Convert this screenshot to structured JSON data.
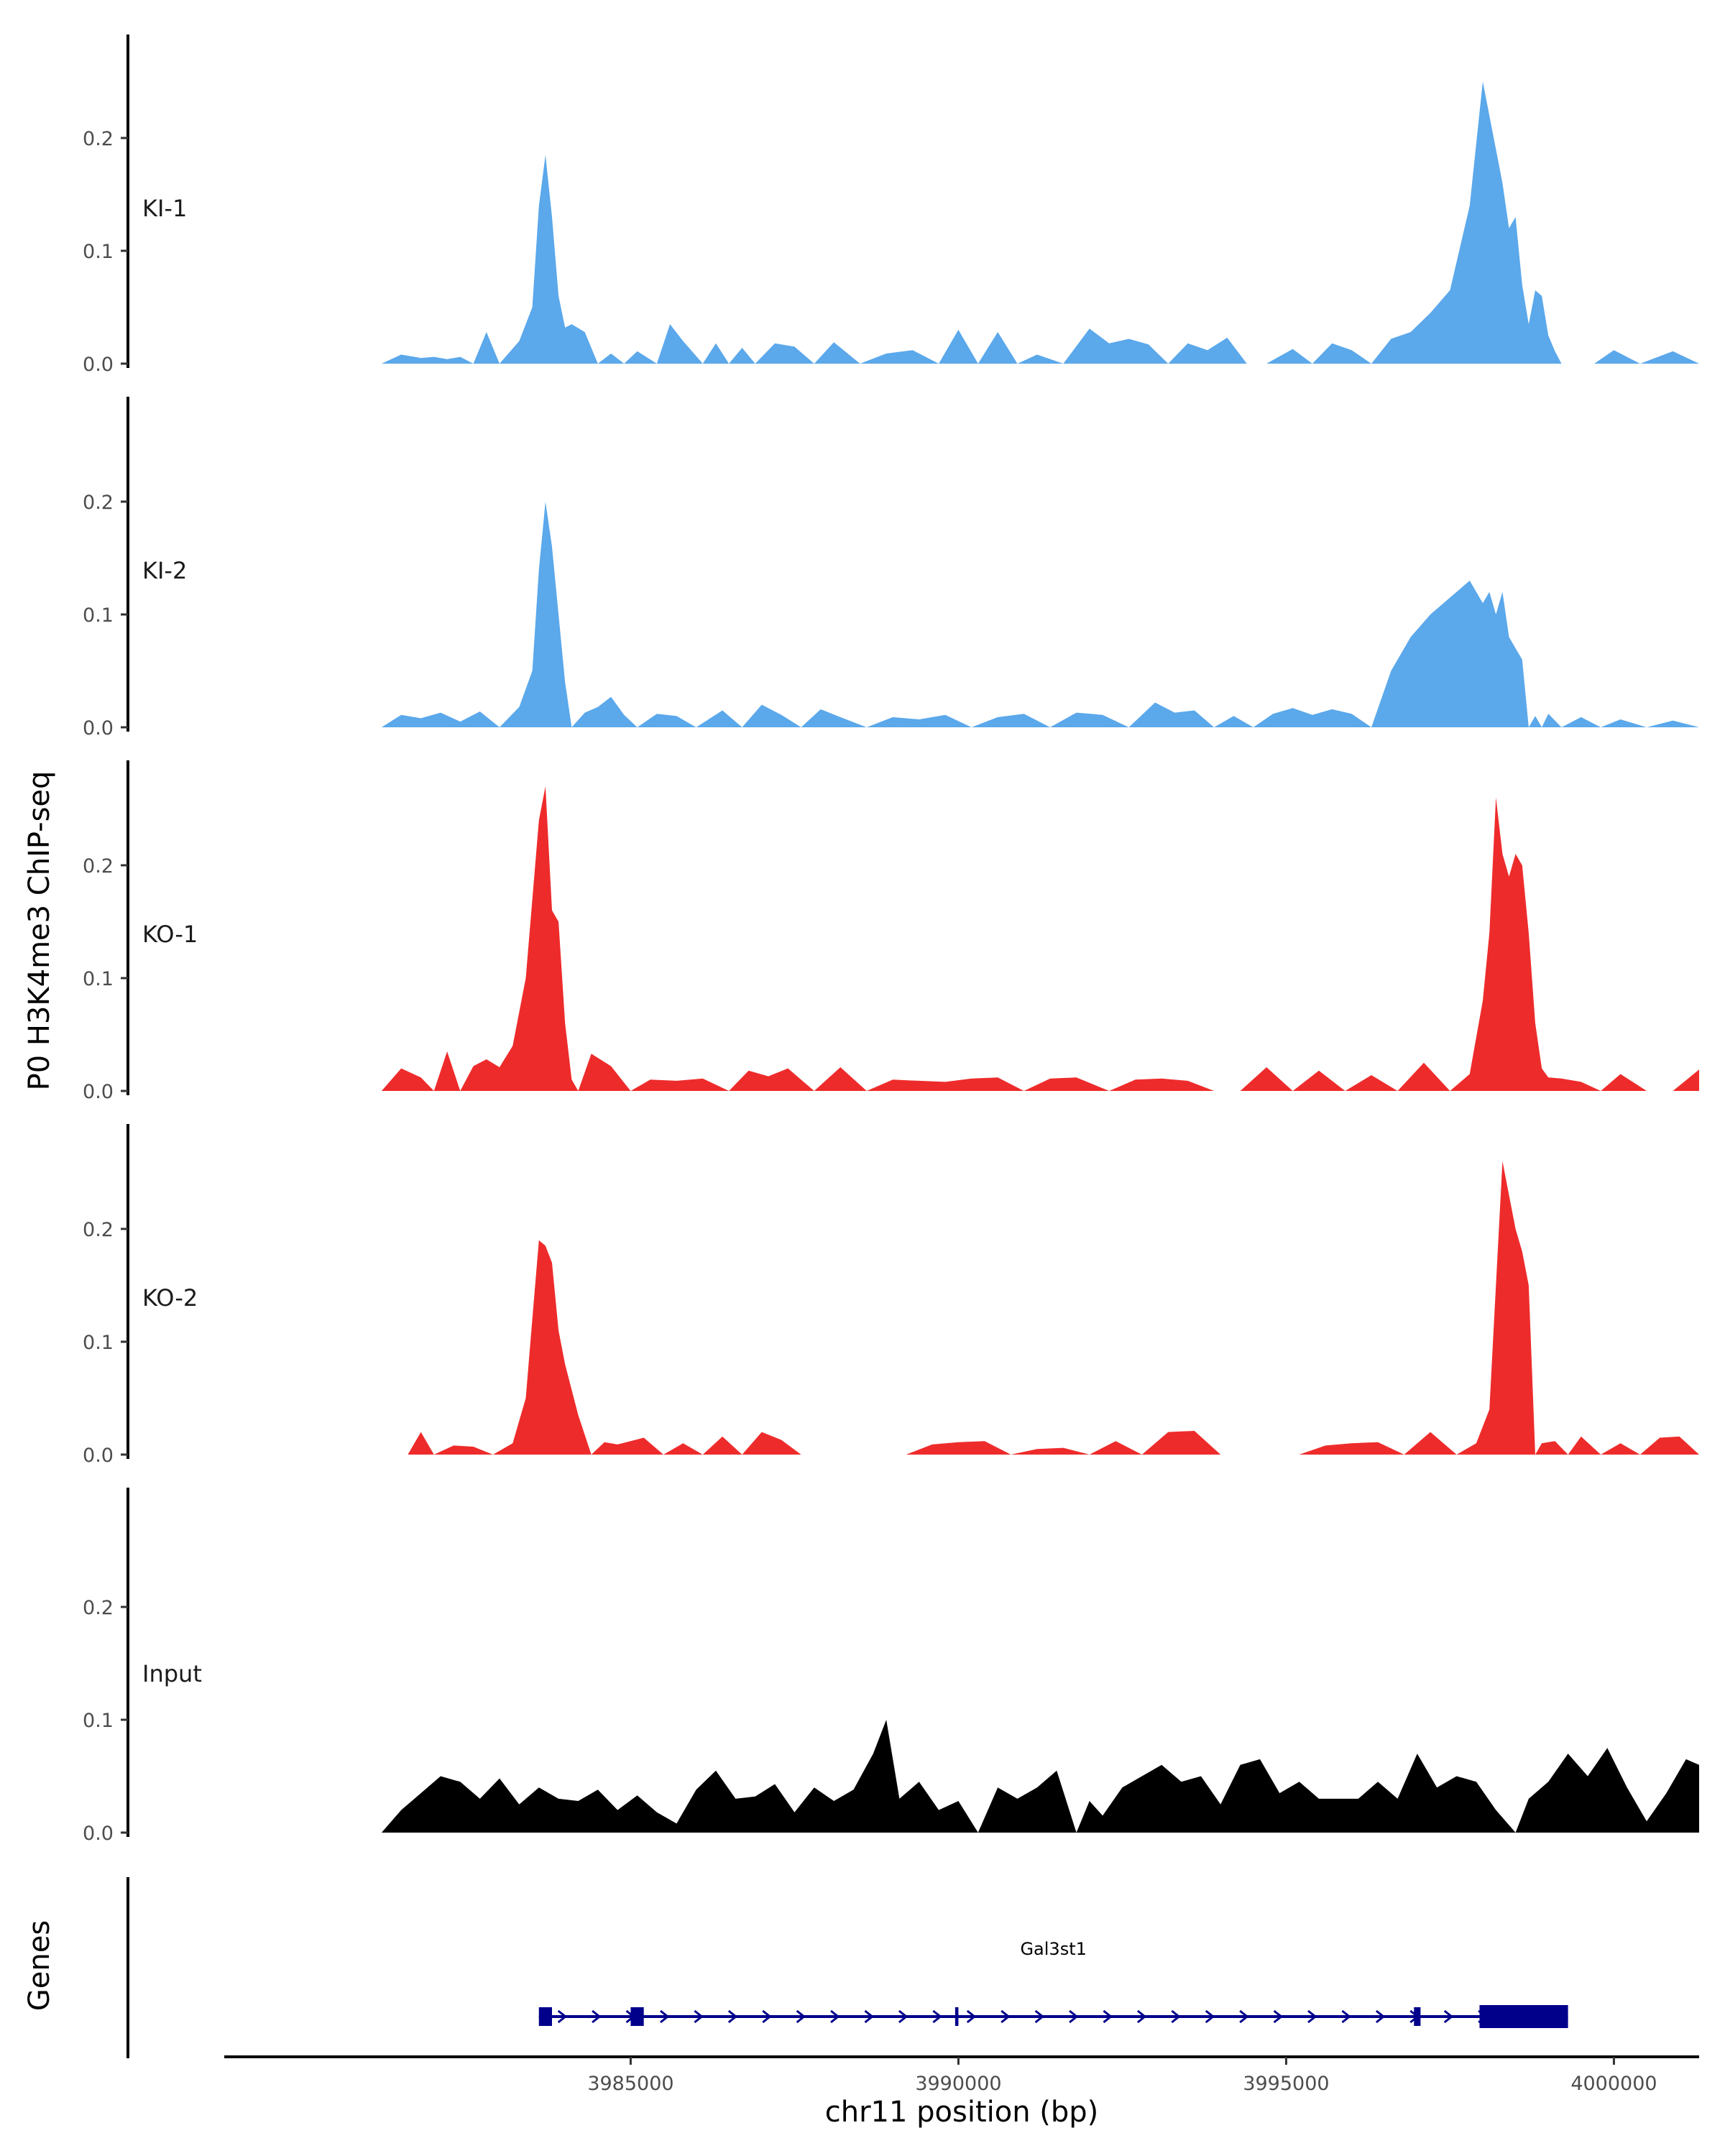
{
  "chart_data": {
    "type": "area",
    "ylabel": "P0 H3K4me3 ChIP-seq",
    "xlabel": "chr11 position (bp)",
    "xlim": [
      3978800,
      4001300
    ],
    "x_ticks": [
      3985000,
      3990000,
      3995000,
      4000000
    ],
    "x_tick_labels": [
      "3985000",
      "3990000",
      "3995000",
      "4000000"
    ],
    "ylim": [
      0,
      0.3
    ],
    "y_ticks": [
      0.0,
      0.1,
      0.2
    ],
    "y_tick_labels": [
      "0.0",
      "0.1",
      "0.2"
    ],
    "genes_label": "Genes",
    "colors": {
      "KI": "#5ba8eb",
      "KO": "#ee2b2b",
      "Input": "#000000",
      "gene": "#00008b"
    },
    "series": [
      {
        "name": "KI-1",
        "color": "#5ba8eb",
        "x": [
          3981200,
          3981500,
          3981800,
          3982000,
          3982200,
          3982400,
          3982600,
          3982800,
          3983000,
          3983300,
          3983500,
          3983600,
          3983700,
          3983800,
          3983900,
          3984000,
          3984100,
          3984300,
          3984500,
          3984700,
          3984900,
          3985100,
          3985400,
          3985600,
          3985800,
          3986100,
          3986300,
          3986500,
          3986700,
          3986900,
          3987200,
          3987500,
          3987800,
          3988100,
          3988500,
          3988900,
          3989300,
          3989700,
          3990000,
          3990300,
          3990600,
          3990900,
          3991200,
          3991600,
          3992000,
          3992300,
          3992600,
          3992900,
          3993200,
          3993500,
          3993800,
          3994100,
          3994400,
          3994700,
          3995100,
          3995400,
          3995700,
          3996000,
          3996300,
          3996600,
          3996900,
          3997200,
          3997500,
          3997800,
          3998000,
          3998200,
          3998300,
          3998400,
          3998500,
          3998600,
          3998700,
          3998800,
          3998900,
          3999000,
          3999100,
          3999200,
          3999400,
          3999700,
          4000000,
          4000400,
          4000900,
          4001300
        ],
        "y": [
          0.0,
          0.008,
          0.005,
          0.006,
          0.004,
          0.006,
          0.0,
          0.028,
          0.0,
          0.02,
          0.05,
          0.14,
          0.185,
          0.13,
          0.06,
          0.032,
          0.035,
          0.028,
          0.0,
          0.009,
          0.0,
          0.011,
          0.0,
          0.035,
          0.02,
          0.0,
          0.018,
          0.0,
          0.014,
          0.0,
          0.018,
          0.015,
          0.0,
          0.019,
          0.0,
          0.009,
          0.012,
          0.0,
          0.03,
          0.0,
          0.028,
          0.0,
          0.008,
          0.0,
          0.031,
          0.018,
          0.022,
          0.017,
          0.0,
          0.018,
          0.012,
          0.023,
          0.0,
          0.0,
          0.013,
          0.0,
          0.018,
          0.012,
          0.0,
          0.022,
          0.028,
          0.045,
          0.065,
          0.14,
          0.25,
          0.19,
          0.16,
          0.12,
          0.13,
          0.07,
          0.035,
          0.065,
          0.06,
          0.025,
          0.011,
          0.0,
          0.0,
          0.0,
          0.012,
          0.0,
          0.011,
          0.0
        ]
      },
      {
        "name": "KI-2",
        "color": "#5ba8eb",
        "x": [
          3981200,
          3981500,
          3981800,
          3982100,
          3982400,
          3982700,
          3983000,
          3983300,
          3983500,
          3983600,
          3983700,
          3983800,
          3983900,
          3984000,
          3984100,
          3984300,
          3984500,
          3984700,
          3984900,
          3985100,
          3985400,
          3985700,
          3986000,
          3986400,
          3986700,
          3987000,
          3987300,
          3987600,
          3987900,
          3988200,
          3988600,
          3989000,
          3989400,
          3989800,
          3990200,
          3990600,
          3991000,
          3991400,
          3991800,
          3992200,
          3992600,
          3993000,
          3993300,
          3993600,
          3993900,
          3994200,
          3994500,
          3994800,
          3995100,
          3995400,
          3995700,
          3996000,
          3996300,
          3996600,
          3996900,
          3997200,
          3997500,
          3997800,
          3998000,
          3998100,
          3998200,
          3998300,
          3998400,
          3998500,
          3998600,
          3998700,
          3998800,
          3998900,
          3999000,
          3999200,
          3999500,
          3999800,
          4000100,
          4000500,
          4000900,
          4001300
        ],
        "y": [
          0.0,
          0.011,
          0.008,
          0.013,
          0.005,
          0.014,
          0.0,
          0.018,
          0.05,
          0.14,
          0.2,
          0.16,
          0.1,
          0.04,
          0.0,
          0.013,
          0.018,
          0.027,
          0.011,
          0.0,
          0.012,
          0.01,
          0.0,
          0.015,
          0.0,
          0.02,
          0.011,
          0.0,
          0.016,
          0.009,
          0.0,
          0.009,
          0.007,
          0.011,
          0.0,
          0.009,
          0.012,
          0.0,
          0.013,
          0.011,
          0.0,
          0.022,
          0.013,
          0.015,
          0.0,
          0.01,
          0.0,
          0.012,
          0.017,
          0.011,
          0.016,
          0.012,
          0.0,
          0.05,
          0.08,
          0.1,
          0.115,
          0.13,
          0.11,
          0.12,
          0.1,
          0.12,
          0.08,
          0.07,
          0.06,
          0.0,
          0.01,
          0.0,
          0.012,
          0.0,
          0.009,
          0.0,
          0.007,
          0.0,
          0.006,
          0.0
        ]
      },
      {
        "name": "KO-1",
        "color": "#ee2b2b",
        "x": [
          3981200,
          3981500,
          3981800,
          3982000,
          3982200,
          3982400,
          3982600,
          3982800,
          3983000,
          3983200,
          3983400,
          3983600,
          3983700,
          3983800,
          3983900,
          3984000,
          3984100,
          3984200,
          3984400,
          3984700,
          3985000,
          3985300,
          3985700,
          3986100,
          3986500,
          3986800,
          3987100,
          3987400,
          3987800,
          3988200,
          3988600,
          3989000,
          3989400,
          3989800,
          3990200,
          3990600,
          3991000,
          3991400,
          3991800,
          3992300,
          3992700,
          3993100,
          3993500,
          3993900,
          3994300,
          3994700,
          3995100,
          3995500,
          3995900,
          3996300,
          3996700,
          3997100,
          3997500,
          3997800,
          3998000,
          3998100,
          3998200,
          3998300,
          3998400,
          3998500,
          3998600,
          3998700,
          3998800,
          3998900,
          3999000,
          3999200,
          3999500,
          3999800,
          4000100,
          4000500,
          4000900,
          4001300
        ],
        "y": [
          0.0,
          0.02,
          0.012,
          0.0,
          0.035,
          0.0,
          0.022,
          0.028,
          0.021,
          0.04,
          0.1,
          0.24,
          0.27,
          0.16,
          0.15,
          0.06,
          0.01,
          0.0,
          0.033,
          0.022,
          0.0,
          0.01,
          0.009,
          0.011,
          0.0,
          0.018,
          0.013,
          0.02,
          0.0,
          0.021,
          0.0,
          0.01,
          0.009,
          0.008,
          0.011,
          0.012,
          0.0,
          0.011,
          0.012,
          0.0,
          0.01,
          0.011,
          0.009,
          0.0,
          0.0,
          0.021,
          0.0,
          0.018,
          0.0,
          0.014,
          0.0,
          0.025,
          0.0,
          0.015,
          0.08,
          0.14,
          0.26,
          0.21,
          0.19,
          0.21,
          0.2,
          0.14,
          0.06,
          0.02,
          0.012,
          0.011,
          0.008,
          0.0,
          0.015,
          0.0,
          0.0,
          0.019
        ]
      },
      {
        "name": "KO-2",
        "color": "#ee2b2b",
        "x": [
          3981200,
          3981600,
          3981800,
          3982000,
          3982300,
          3982600,
          3982900,
          3983200,
          3983400,
          3983500,
          3983600,
          3983700,
          3983800,
          3983900,
          3984000,
          3984200,
          3984400,
          3984600,
          3984800,
          3985000,
          3985200,
          3985500,
          3985800,
          3986100,
          3986400,
          3986700,
          3987000,
          3987300,
          3987600,
          3987900,
          3988200,
          3988500,
          3988800,
          3989200,
          3989600,
          3990000,
          3990400,
          3990800,
          3991200,
          3991600,
          3992000,
          3992400,
          3992800,
          3993200,
          3993600,
          3994000,
          3994400,
          3994800,
          3995200,
          3995600,
          3996000,
          3996400,
          3996800,
          3997200,
          3997600,
          3997900,
          3998100,
          3998200,
          3998300,
          3998400,
          3998500,
          3998600,
          3998700,
          3998800,
          3998900,
          3999100,
          3999300,
          3999500,
          3999800,
          4000100,
          4000400,
          4000700,
          4001000,
          4001300
        ],
        "y": [
          0.0,
          0.0,
          0.02,
          0.0,
          0.008,
          0.007,
          0.0,
          0.01,
          0.05,
          0.12,
          0.19,
          0.185,
          0.17,
          0.11,
          0.08,
          0.035,
          0.0,
          0.011,
          0.009,
          0.012,
          0.015,
          0.0,
          0.01,
          0.0,
          0.016,
          0.0,
          0.02,
          0.013,
          0.0,
          0.0,
          0.0,
          0.0,
          0.0,
          0.0,
          0.009,
          0.011,
          0.012,
          0.0,
          0.005,
          0.006,
          0.0,
          0.012,
          0.0,
          0.02,
          0.021,
          0.0,
          0.0,
          0.0,
          0.0,
          0.008,
          0.01,
          0.011,
          0.0,
          0.02,
          0.0,
          0.01,
          0.04,
          0.15,
          0.26,
          0.23,
          0.2,
          0.18,
          0.15,
          0.0,
          0.01,
          0.012,
          0.0,
          0.016,
          0.0,
          0.01,
          0.0,
          0.015,
          0.016,
          0.0
        ]
      },
      {
        "name": "Input",
        "color": "#000000",
        "x": [
          3981200,
          3981500,
          3981800,
          3982100,
          3982400,
          3982700,
          3983000,
          3983300,
          3983600,
          3983900,
          3984200,
          3984500,
          3984800,
          3985100,
          3985400,
          3985700,
          3986000,
          3986300,
          3986600,
          3986900,
          3987200,
          3987500,
          3987800,
          3988100,
          3988400,
          3988700,
          3988900,
          3989100,
          3989400,
          3989700,
          3990000,
          3990300,
          3990600,
          3990900,
          3991200,
          3991500,
          3991800,
          3992000,
          3992200,
          3992500,
          3992800,
          3993100,
          3993400,
          3993700,
          3994000,
          3994300,
          3994600,
          3994900,
          3995200,
          3995500,
          3995800,
          3996100,
          3996400,
          3996700,
          3997000,
          3997300,
          3997600,
          3997900,
          3998200,
          3998500,
          3998700,
          3999000,
          3999300,
          3999600,
          3999900,
          4000200,
          4000500,
          4000800,
          4001100,
          4001300
        ],
        "y": [
          0.0,
          0.02,
          0.035,
          0.05,
          0.045,
          0.03,
          0.048,
          0.025,
          0.04,
          0.03,
          0.028,
          0.038,
          0.02,
          0.033,
          0.018,
          0.008,
          0.038,
          0.055,
          0.03,
          0.032,
          0.043,
          0.018,
          0.04,
          0.028,
          0.038,
          0.07,
          0.1,
          0.03,
          0.045,
          0.02,
          0.028,
          0.0,
          0.04,
          0.03,
          0.04,
          0.055,
          0.0,
          0.028,
          0.015,
          0.04,
          0.05,
          0.06,
          0.045,
          0.05,
          0.025,
          0.06,
          0.065,
          0.035,
          0.045,
          0.03,
          0.03,
          0.03,
          0.045,
          0.03,
          0.07,
          0.04,
          0.05,
          0.045,
          0.02,
          0.0,
          0.03,
          0.045,
          0.07,
          0.05,
          0.075,
          0.04,
          0.01,
          0.035,
          0.065,
          0.06
        ]
      }
    ],
    "gene": {
      "name": "Gal3st1",
      "start": 3983600,
      "end": 3999300,
      "strand": "+",
      "exons": [
        [
          3983600,
          3983800
        ],
        [
          3985000,
          3985200
        ],
        [
          3989950,
          3990000
        ],
        [
          3996950,
          3997050
        ],
        [
          3997950,
          3999300
        ]
      ]
    }
  }
}
